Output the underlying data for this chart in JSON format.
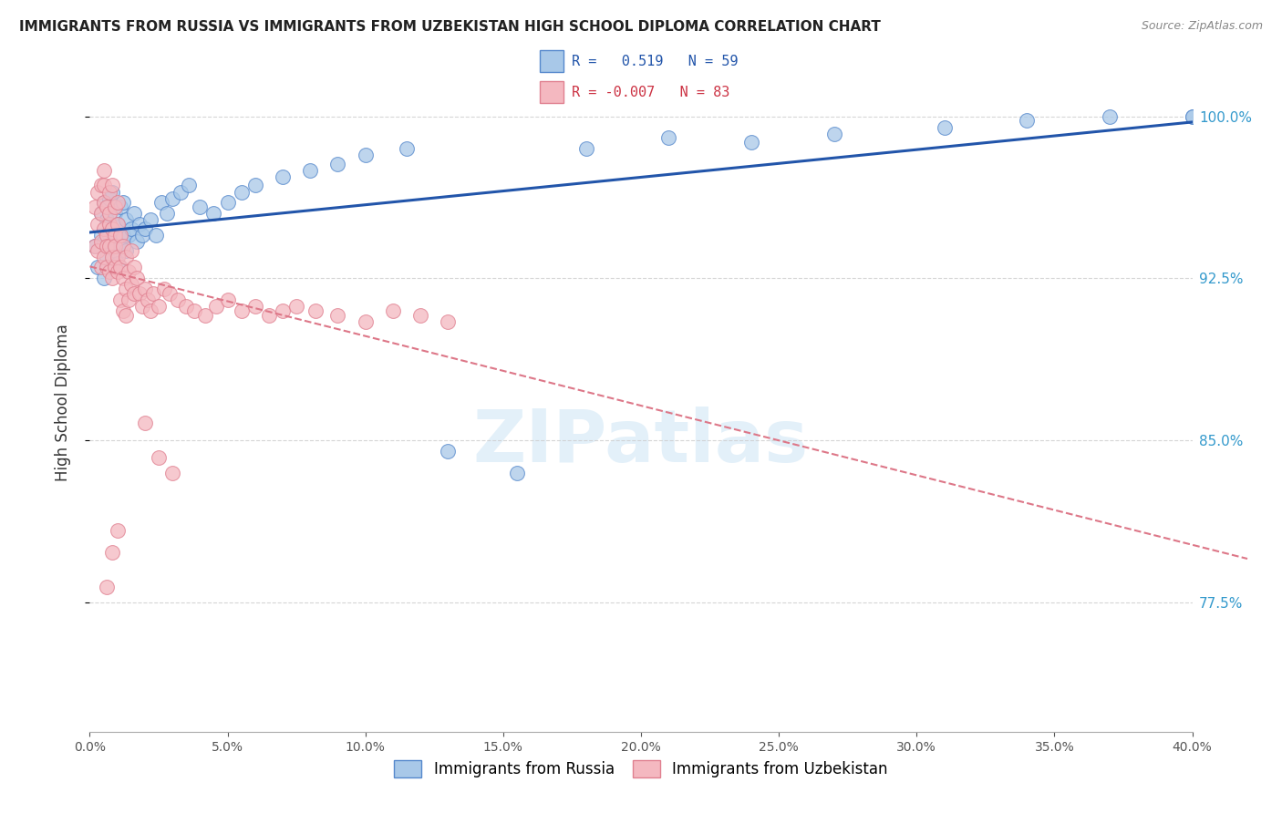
{
  "title": "IMMIGRANTS FROM RUSSIA VS IMMIGRANTS FROM UZBEKISTAN HIGH SCHOOL DIPLOMA CORRELATION CHART",
  "source": "Source: ZipAtlas.com",
  "ylabel": "High School Diploma",
  "xlim": [
    0.0,
    0.4
  ],
  "ylim": [
    0.715,
    1.02
  ],
  "russia_R": 0.519,
  "russia_N": 59,
  "uzbek_R": -0.007,
  "uzbek_N": 83,
  "russia_color": "#a8c8e8",
  "uzbek_color": "#f4b8c0",
  "russia_edge_color": "#5588cc",
  "uzbek_edge_color": "#e08090",
  "russia_line_color": "#2255aa",
  "uzbek_line_color": "#dd7788",
  "legend_label_russia": "Immigrants from Russia",
  "legend_label_uzbek": "Immigrants from Uzbekistan",
  "watermark": "ZIPatlas",
  "ytick_positions": [
    0.775,
    0.85,
    0.925,
    1.0
  ],
  "russia_x": [
    0.002,
    0.003,
    0.004,
    0.004,
    0.005,
    0.005,
    0.005,
    0.006,
    0.006,
    0.007,
    0.007,
    0.008,
    0.008,
    0.008,
    0.009,
    0.009,
    0.01,
    0.01,
    0.011,
    0.011,
    0.012,
    0.012,
    0.013,
    0.013,
    0.014,
    0.015,
    0.016,
    0.017,
    0.018,
    0.019,
    0.02,
    0.022,
    0.024,
    0.026,
    0.028,
    0.03,
    0.033,
    0.036,
    0.04,
    0.045,
    0.05,
    0.055,
    0.06,
    0.07,
    0.08,
    0.09,
    0.1,
    0.115,
    0.13,
    0.155,
    0.18,
    0.21,
    0.24,
    0.27,
    0.31,
    0.34,
    0.37,
    1.0,
    1.0
  ],
  "russia_y": [
    0.94,
    0.93,
    0.955,
    0.945,
    0.925,
    0.942,
    0.96,
    0.935,
    0.952,
    0.945,
    0.962,
    0.93,
    0.948,
    0.965,
    0.938,
    0.955,
    0.932,
    0.95,
    0.94,
    0.958,
    0.945,
    0.96,
    0.938,
    0.952,
    0.945,
    0.948,
    0.955,
    0.942,
    0.95,
    0.945,
    0.948,
    0.952,
    0.945,
    0.96,
    0.955,
    0.962,
    0.965,
    0.968,
    0.958,
    0.955,
    0.96,
    0.965,
    0.968,
    0.972,
    0.975,
    0.978,
    0.982,
    0.985,
    0.845,
    0.835,
    0.985,
    0.99,
    0.988,
    0.992,
    0.995,
    0.998,
    1.0,
    1.0,
    1.0
  ],
  "uzbek_x": [
    0.002,
    0.002,
    0.003,
    0.003,
    0.003,
    0.004,
    0.004,
    0.004,
    0.004,
    0.005,
    0.005,
    0.005,
    0.005,
    0.005,
    0.006,
    0.006,
    0.006,
    0.006,
    0.007,
    0.007,
    0.007,
    0.007,
    0.007,
    0.008,
    0.008,
    0.008,
    0.008,
    0.009,
    0.009,
    0.009,
    0.009,
    0.01,
    0.01,
    0.01,
    0.01,
    0.011,
    0.011,
    0.011,
    0.012,
    0.012,
    0.012,
    0.013,
    0.013,
    0.013,
    0.014,
    0.014,
    0.015,
    0.015,
    0.016,
    0.016,
    0.017,
    0.018,
    0.019,
    0.02,
    0.021,
    0.022,
    0.023,
    0.025,
    0.027,
    0.029,
    0.032,
    0.035,
    0.038,
    0.042,
    0.046,
    0.05,
    0.055,
    0.06,
    0.065,
    0.07,
    0.075,
    0.082,
    0.09,
    0.1,
    0.11,
    0.12,
    0.13,
    0.02,
    0.025,
    0.03,
    0.01,
    0.008,
    0.006
  ],
  "uzbek_y": [
    0.958,
    0.94,
    0.965,
    0.95,
    0.938,
    0.968,
    0.955,
    0.942,
    0.93,
    0.96,
    0.948,
    0.935,
    0.968,
    0.975,
    0.945,
    0.958,
    0.94,
    0.93,
    0.95,
    0.965,
    0.94,
    0.928,
    0.955,
    0.948,
    0.935,
    0.968,
    0.925,
    0.945,
    0.93,
    0.958,
    0.94,
    0.95,
    0.935,
    0.928,
    0.96,
    0.945,
    0.93,
    0.915,
    0.94,
    0.925,
    0.91,
    0.935,
    0.92,
    0.908,
    0.928,
    0.915,
    0.938,
    0.922,
    0.93,
    0.918,
    0.925,
    0.918,
    0.912,
    0.92,
    0.915,
    0.91,
    0.918,
    0.912,
    0.92,
    0.918,
    0.915,
    0.912,
    0.91,
    0.908,
    0.912,
    0.915,
    0.91,
    0.912,
    0.908,
    0.91,
    0.912,
    0.91,
    0.908,
    0.905,
    0.91,
    0.908,
    0.905,
    0.858,
    0.842,
    0.835,
    0.808,
    0.798,
    0.782
  ]
}
